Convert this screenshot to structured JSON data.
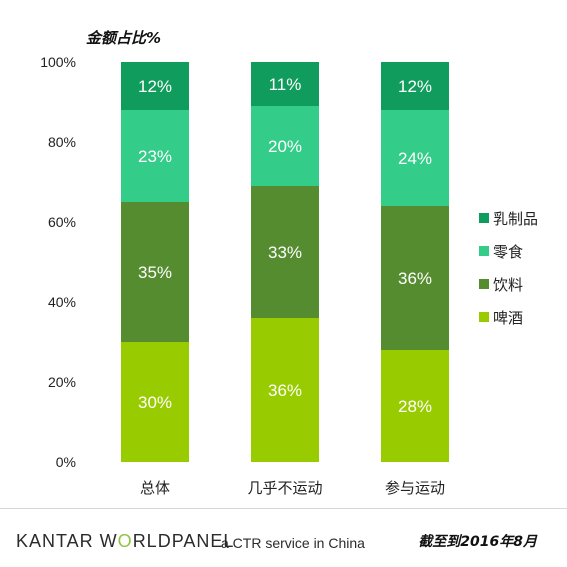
{
  "chart_data": {
    "type": "bar",
    "stacked": true,
    "ylabel": "金额占比%",
    "ylim": [
      0,
      100
    ],
    "yticks": [
      "0%",
      "20%",
      "40%",
      "60%",
      "80%",
      "100%"
    ],
    "categories": [
      "总体",
      "几乎不运动",
      "参与运动"
    ],
    "series": [
      {
        "name": "啤酒",
        "color": "#99cc00",
        "values": [
          30,
          36,
          28
        ],
        "labels": [
          "30%",
          "36%",
          "28%"
        ]
      },
      {
        "name": "饮料",
        "color": "#548c2f",
        "values": [
          35,
          33,
          36
        ],
        "labels": [
          "35%",
          "33%",
          "36%"
        ]
      },
      {
        "name": "零食",
        "color": "#33cc88",
        "values": [
          23,
          20,
          24
        ],
        "labels": [
          "23%",
          "20%",
          "24%"
        ]
      },
      {
        "name": "乳制品",
        "color": "#109c5c",
        "values": [
          12,
          11,
          12
        ],
        "labels": [
          "12%",
          "11%",
          "12%"
        ]
      }
    ],
    "legend_order": [
      "乳制品",
      "零食",
      "饮料",
      "啤酒"
    ],
    "legend_position": "right",
    "grid": false
  },
  "footer": {
    "brand_k": "KANTAR W",
    "brand_o": "O",
    "brand_rest": "RLDPANEL",
    "tagline": "a CTR service in China",
    "date": "截至到2016年8月"
  }
}
